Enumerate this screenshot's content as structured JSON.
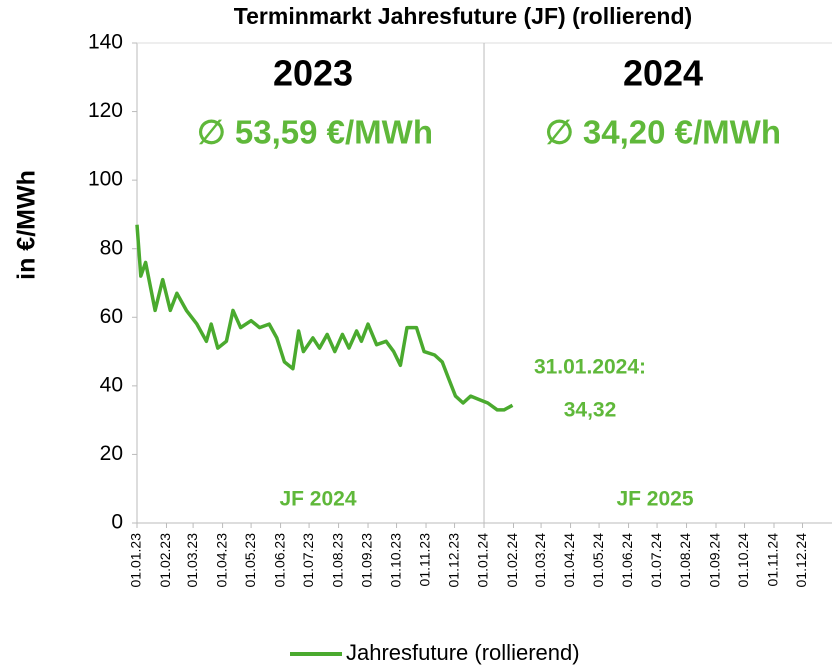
{
  "chart_data": {
    "type": "line",
    "title": "Terminmarkt Jahresfuture (JF) (rollierend)",
    "ylabel": "in €/MWh",
    "ylim": [
      0,
      140
    ],
    "yticks": [
      0,
      20,
      40,
      60,
      80,
      100,
      120,
      140
    ],
    "xlim": [
      "01.01.23",
      "01.01.25"
    ],
    "xticks": [
      "01.01.23",
      "01.02.23",
      "01.03.23",
      "01.04.23",
      "01.05.23",
      "01.06.23",
      "01.07.23",
      "01.08.23",
      "01.09.23",
      "01.10.23",
      "01.11.23",
      "01.12.23",
      "01.01.24",
      "01.02.24",
      "01.03.24",
      "01.04.24",
      "01.05.24",
      "01.06.24",
      "01.07.24",
      "01.08.24",
      "01.09.24",
      "01.10.24",
      "01.11.24",
      "01.12.24"
    ],
    "legend_position": "bottom",
    "annotations": [
      "2023",
      "2024",
      "∅ 53,59 €/MWh",
      "∅ 34,20 €/MWh",
      "31.01.2024:",
      "34,32",
      "JF 2024",
      "JF 2025"
    ],
    "series": [
      {
        "name": "Jahresfuture (rollierend)",
        "color": "#4aaa2e",
        "x": [
          "01.01.23",
          "05.01.23",
          "10.01.23",
          "20.01.23",
          "28.01.23",
          "05.02.23",
          "12.02.23",
          "22.02.23",
          "05.03.23",
          "15.03.23",
          "20.03.23",
          "27.03.23",
          "05.04.23",
          "12.04.23",
          "20.04.23",
          "01.05.23",
          "10.05.23",
          "20.05.23",
          "28.05.23",
          "05.06.23",
          "14.06.23",
          "20.06.23",
          "25.06.23",
          "05.07.23",
          "12.07.23",
          "20.07.23",
          "28.07.23",
          "05.08.23",
          "12.08.23",
          "20.08.23",
          "25.08.23",
          "01.09.23",
          "10.09.23",
          "20.09.23",
          "28.09.23",
          "05.10.23",
          "12.10.23",
          "22.10.23",
          "30.10.23",
          "10.11.23",
          "18.11.23",
          "25.11.23",
          "02.12.23",
          "10.12.23",
          "18.12.23",
          "27.12.23",
          "05.01.24",
          "15.01.24",
          "22.01.24",
          "31.01.24"
        ],
        "values": [
          87,
          72,
          76,
          62,
          71,
          62,
          67,
          62,
          58,
          53,
          58,
          51,
          53,
          62,
          57,
          59,
          57,
          58,
          54,
          47,
          45,
          56,
          50,
          54,
          51,
          55,
          50,
          55,
          51,
          56,
          53,
          58,
          52,
          53,
          50,
          46,
          57,
          57,
          50,
          49,
          47,
          42,
          37,
          35,
          37,
          36,
          35,
          33,
          33,
          34.32
        ]
      }
    ]
  }
}
